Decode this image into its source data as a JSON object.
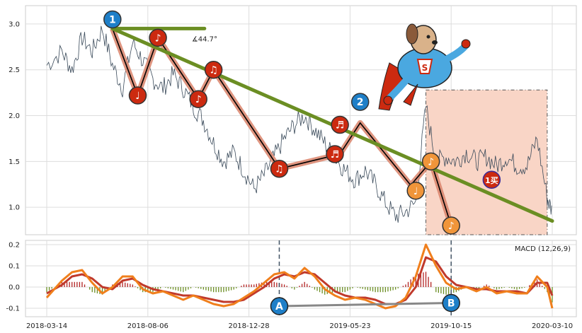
{
  "chart_data": [
    {
      "type": "line",
      "panel": "price",
      "y_ticks": [
        "3.0",
        "2.5",
        "2.0",
        "1.5",
        "1.0"
      ],
      "y_tick_values": [
        3.0,
        2.5,
        2.0,
        1.5,
        1.0
      ],
      "ylim": [
        0.7,
        3.2
      ],
      "xlim_index": [
        0,
        100
      ],
      "series_anchor_points": [
        [
          0,
          2.55
        ],
        [
          3,
          2.7
        ],
        [
          5,
          2.5
        ],
        [
          7,
          2.85
        ],
        [
          9,
          2.7
        ],
        [
          11,
          2.95
        ],
        [
          13,
          2.55
        ],
        [
          15,
          2.3
        ],
        [
          17,
          2.8
        ],
        [
          19,
          2.6
        ],
        [
          21,
          2.4
        ],
        [
          23,
          2.3
        ],
        [
          25,
          2.45
        ],
        [
          27,
          2.3
        ],
        [
          29,
          2.1
        ],
        [
          31,
          1.95
        ],
        [
          33,
          1.7
        ],
        [
          35,
          1.5
        ],
        [
          37,
          1.6
        ],
        [
          39,
          1.4
        ],
        [
          41,
          1.2
        ],
        [
          43,
          1.35
        ],
        [
          45,
          1.55
        ],
        [
          47,
          1.75
        ],
        [
          49,
          1.9
        ],
        [
          51,
          2.0
        ],
        [
          53,
          1.85
        ],
        [
          55,
          1.7
        ],
        [
          57,
          1.55
        ],
        [
          59,
          1.4
        ],
        [
          61,
          1.3
        ],
        [
          63,
          1.4
        ],
        [
          65,
          1.25
        ],
        [
          67,
          1.05
        ],
        [
          69,
          0.9
        ],
        [
          71,
          0.95
        ],
        [
          73,
          1.05
        ],
        [
          75,
          2.1
        ],
        [
          77,
          1.5
        ],
        [
          79,
          1.55
        ],
        [
          81,
          1.5
        ],
        [
          83,
          1.6
        ],
        [
          85,
          1.5
        ],
        [
          87,
          1.55
        ],
        [
          89,
          1.45
        ],
        [
          91,
          1.55
        ],
        [
          93,
          1.45
        ],
        [
          95,
          1.45
        ],
        [
          97,
          1.75
        ],
        [
          99,
          1.1
        ],
        [
          100,
          0.95
        ]
      ],
      "trend_polyline": [
        [
          13,
          2.95
        ],
        [
          18,
          2.22
        ],
        [
          22,
          2.85
        ],
        [
          30,
          2.18
        ],
        [
          33,
          2.5
        ],
        [
          46,
          1.42
        ],
        [
          58,
          1.58
        ],
        [
          62,
          1.92
        ],
        [
          72,
          1.24
        ],
        [
          76,
          1.5
        ],
        [
          80,
          0.8
        ]
      ],
      "trendline": [
        [
          13,
          2.95
        ],
        [
          100,
          0.85
        ]
      ],
      "angle_label": "∡44.7°",
      "highlight_box": [
        75,
        99,
        0.7,
        2.28
      ],
      "markers": [
        {
          "label": "1",
          "x": 13,
          "y": 3.05,
          "kind": "blue"
        },
        {
          "label": "2",
          "x": 62,
          "y": 2.15,
          "kind": "blue"
        },
        {
          "label": "♩",
          "x": 18,
          "y": 2.22,
          "kind": "red"
        },
        {
          "label": "♪",
          "x": 22,
          "y": 2.85,
          "kind": "red"
        },
        {
          "label": "♪",
          "x": 30,
          "y": 2.18,
          "kind": "red"
        },
        {
          "label": "♫",
          "x": 33,
          "y": 2.5,
          "kind": "red"
        },
        {
          "label": "♫",
          "x": 46,
          "y": 1.42,
          "kind": "red"
        },
        {
          "label": "♬",
          "x": 58,
          "y": 1.9,
          "kind": "red"
        },
        {
          "label": "♬",
          "x": 57,
          "y": 1.58,
          "kind": "red"
        },
        {
          "label": "♩",
          "x": 73,
          "y": 1.18,
          "kind": "orange"
        },
        {
          "label": "♪",
          "x": 76,
          "y": 1.5,
          "kind": "orange"
        },
        {
          "label": "♪",
          "x": 80,
          "y": 0.8,
          "kind": "orange"
        },
        {
          "label": "1买",
          "x": 88,
          "y": 1.3,
          "kind": "redbuy"
        }
      ]
    },
    {
      "type": "line",
      "panel": "macd",
      "legend": "MACD (12,26,9)",
      "y_ticks": [
        "0.2",
        "0.1",
        "0.0",
        "-0.1"
      ],
      "y_tick_values": [
        0.2,
        0.1,
        0.0,
        -0.1
      ],
      "ylim": [
        -0.14,
        0.22
      ],
      "x_tick_labels": [
        "2018-03-14",
        "2018-08-06",
        "2018-12-28",
        "2019-05-23",
        "2019-10-15",
        "2020-03-10"
      ],
      "x_tick_positions": [
        -8,
        24,
        56,
        88,
        120,
        152
      ],
      "series": [
        {
          "name": "DIF",
          "values": [
            [
              0,
              -0.05
            ],
            [
              3,
              0.03
            ],
            [
              5,
              0.07
            ],
            [
              7,
              0.08
            ],
            [
              9,
              0.02
            ],
            [
              11,
              -0.03
            ],
            [
              13,
              0.0
            ],
            [
              15,
              0.05
            ],
            [
              17,
              0.05
            ],
            [
              19,
              -0.01
            ],
            [
              21,
              -0.03
            ],
            [
              23,
              -0.02
            ],
            [
              25,
              -0.04
            ],
            [
              27,
              -0.06
            ],
            [
              29,
              -0.04
            ],
            [
              31,
              -0.06
            ],
            [
              33,
              -0.08
            ],
            [
              35,
              -0.09
            ],
            [
              37,
              -0.08
            ],
            [
              39,
              -0.05
            ],
            [
              41,
              -0.02
            ],
            [
              43,
              0.02
            ],
            [
              45,
              0.06
            ],
            [
              47,
              0.07
            ],
            [
              49,
              0.04
            ],
            [
              51,
              0.09
            ],
            [
              53,
              0.05
            ],
            [
              55,
              -0.01
            ],
            [
              57,
              -0.04
            ],
            [
              59,
              -0.06
            ],
            [
              61,
              -0.05
            ],
            [
              63,
              -0.06
            ],
            [
              65,
              -0.08
            ],
            [
              67,
              -0.1
            ],
            [
              69,
              -0.09
            ],
            [
              71,
              -0.05
            ],
            [
              73,
              0.05
            ],
            [
              75,
              0.2
            ],
            [
              77,
              0.1
            ],
            [
              79,
              0.02
            ],
            [
              81,
              -0.01
            ],
            [
              83,
              0.0
            ],
            [
              85,
              -0.02
            ],
            [
              87,
              0.0
            ],
            [
              89,
              -0.03
            ],
            [
              91,
              -0.02
            ],
            [
              93,
              -0.03
            ],
            [
              95,
              -0.03
            ],
            [
              97,
              0.05
            ],
            [
              99,
              0.0
            ],
            [
              100,
              -0.1
            ]
          ]
        },
        {
          "name": "DEA",
          "values": [
            [
              0,
              -0.03
            ],
            [
              3,
              0.01
            ],
            [
              5,
              0.05
            ],
            [
              7,
              0.06
            ],
            [
              9,
              0.04
            ],
            [
              11,
              0.0
            ],
            [
              13,
              -0.01
            ],
            [
              15,
              0.03
            ],
            [
              17,
              0.04
            ],
            [
              19,
              0.01
            ],
            [
              21,
              -0.01
            ],
            [
              23,
              -0.02
            ],
            [
              25,
              -0.03
            ],
            [
              27,
              -0.04
            ],
            [
              29,
              -0.04
            ],
            [
              31,
              -0.05
            ],
            [
              33,
              -0.06
            ],
            [
              35,
              -0.07
            ],
            [
              37,
              -0.07
            ],
            [
              39,
              -0.06
            ],
            [
              41,
              -0.03
            ],
            [
              43,
              0.0
            ],
            [
              45,
              0.04
            ],
            [
              47,
              0.06
            ],
            [
              49,
              0.05
            ],
            [
              51,
              0.07
            ],
            [
              53,
              0.06
            ],
            [
              55,
              0.02
            ],
            [
              57,
              -0.02
            ],
            [
              59,
              -0.04
            ],
            [
              61,
              -0.05
            ],
            [
              63,
              -0.05
            ],
            [
              65,
              -0.06
            ],
            [
              67,
              -0.08
            ],
            [
              69,
              -0.08
            ],
            [
              71,
              -0.06
            ],
            [
              73,
              0.0
            ],
            [
              75,
              0.14
            ],
            [
              77,
              0.12
            ],
            [
              79,
              0.05
            ],
            [
              81,
              0.01
            ],
            [
              83,
              0.0
            ],
            [
              85,
              -0.01
            ],
            [
              87,
              -0.01
            ],
            [
              89,
              -0.02
            ],
            [
              91,
              -0.02
            ],
            [
              93,
              -0.02
            ],
            [
              95,
              -0.03
            ],
            [
              97,
              0.02
            ],
            [
              99,
              0.02
            ],
            [
              100,
              -0.04
            ]
          ]
        }
      ],
      "divergence_line": [
        [
          46,
          -0.09
        ],
        [
          80,
          -0.075
        ]
      ],
      "divergence_markers": [
        {
          "label": "A",
          "x": 46,
          "y": -0.09
        },
        {
          "label": "B",
          "x": 80,
          "y": -0.075
        }
      ],
      "vertical_dashed_lines": [
        46,
        80
      ]
    }
  ],
  "colors": {
    "price_line": "#3a4a5a",
    "trend_main": "#6b8e23",
    "trend_shadow": "#d9826a",
    "trend_inner": "#000000",
    "highlight_fill": "#f9d5c6",
    "highlight_stroke": "#555555",
    "dif": "#f07f1c",
    "dea": "#c0392b",
    "hist_pos": "#b22222",
    "hist_neg": "#6b8e23",
    "marker_blue": "#1e7fc8",
    "marker_red": "#cc2a10",
    "marker_orange": "#f0953a"
  },
  "icons": {
    "mascot": "superhero-dog-icon"
  }
}
